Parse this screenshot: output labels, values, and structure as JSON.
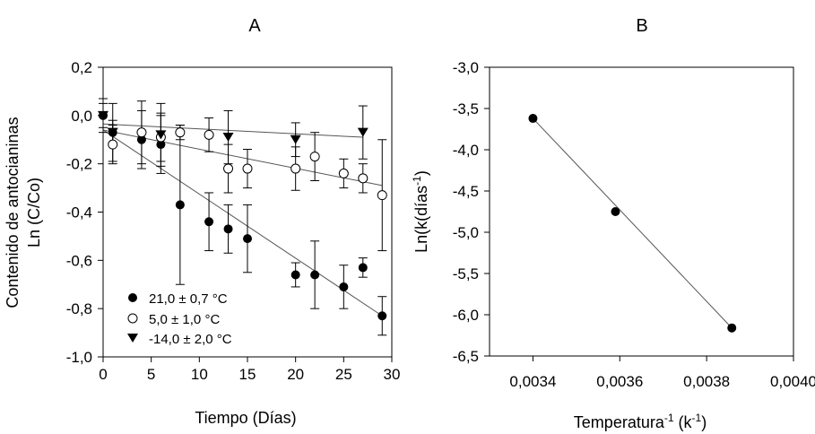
{
  "chart_data": [
    {
      "panel": "A",
      "type": "scatter",
      "title": "A",
      "xlabel": "Tiempo (Días)",
      "ylabel_line1": "Contenido de antocianinas",
      "ylabel_line2": "Ln (C/Co)",
      "xlim": [
        0,
        30
      ],
      "ylim": [
        -1.0,
        0.2
      ],
      "xticks": [
        0,
        5,
        10,
        15,
        20,
        25,
        30
      ],
      "xtick_labels": [
        "0",
        "5",
        "10",
        "15",
        "20",
        "25",
        "30"
      ],
      "yticks": [
        0.2,
        0.0,
        -0.2,
        -0.4,
        -0.6,
        -0.8,
        -1.0
      ],
      "ytick_labels": [
        "0,2",
        "0,0",
        "-0,2",
        "-0,4",
        "-0,6",
        "-0,8",
        "-1,0"
      ],
      "grid": false,
      "legend_position": "bottom-left",
      "series": [
        {
          "name": "21,0 ± 0,7 °C",
          "marker": "circle-filled",
          "points": [
            {
              "x": 0,
              "y": 0.0,
              "err": 0.05
            },
            {
              "x": 1,
              "y": -0.07,
              "err": 0.12
            },
            {
              "x": 4,
              "y": -0.1,
              "err": 0.12
            },
            {
              "x": 6,
              "y": -0.12,
              "err": 0.12
            },
            {
              "x": 8,
              "y": -0.37,
              "err": 0.33
            },
            {
              "x": 11,
              "y": -0.44,
              "err": 0.12
            },
            {
              "x": 13,
              "y": -0.47,
              "err": 0.1
            },
            {
              "x": 15,
              "y": -0.51,
              "err": 0.14
            },
            {
              "x": 20,
              "y": -0.66,
              "err": 0.05
            },
            {
              "x": 22,
              "y": -0.66,
              "err": 0.14
            },
            {
              "x": 25,
              "y": -0.71,
              "err": 0.09
            },
            {
              "x": 27,
              "y": -0.63,
              "err": 0.04
            },
            {
              "x": 29,
              "y": -0.83,
              "err": 0.08
            }
          ],
          "fit": {
            "x": [
              0,
              29
            ],
            "y": [
              -0.06,
              -0.83
            ]
          }
        },
        {
          "name": "5,0 ± 1,0 °C",
          "marker": "circle-open",
          "points": [
            {
              "x": 1,
              "y": -0.12,
              "err": 0.08
            },
            {
              "x": 4,
              "y": -0.07,
              "err": 0.13
            },
            {
              "x": 6,
              "y": -0.09,
              "err": 0.1
            },
            {
              "x": 8,
              "y": -0.07,
              "err": 0.03
            },
            {
              "x": 11,
              "y": -0.08,
              "err": 0.07
            },
            {
              "x": 13,
              "y": -0.22,
              "err": 0.1
            },
            {
              "x": 15,
              "y": -0.22,
              "err": 0.08
            },
            {
              "x": 20,
              "y": -0.22,
              "err": 0.09
            },
            {
              "x": 22,
              "y": -0.17,
              "err": 0.1
            },
            {
              "x": 25,
              "y": -0.24,
              "err": 0.06
            },
            {
              "x": 27,
              "y": -0.26,
              "err": 0.06
            },
            {
              "x": 29,
              "y": -0.33,
              "err": 0.23
            }
          ],
          "fit": {
            "x": [
              0,
              29
            ],
            "y": [
              -0.06,
              -0.29
            ]
          }
        },
        {
          "name": "-14,0 ± 2,0 °C",
          "marker": "triangle-down-filled",
          "points": [
            {
              "x": 0,
              "y": 0.0,
              "err": 0.07
            },
            {
              "x": 1,
              "y": -0.07,
              "err": 0.05
            },
            {
              "x": 6,
              "y": -0.08,
              "err": 0.13
            },
            {
              "x": 13,
              "y": -0.09,
              "err": 0.11
            },
            {
              "x": 20,
              "y": -0.1,
              "err": 0.07
            },
            {
              "x": 27,
              "y": -0.07,
              "err": 0.11
            }
          ],
          "fit": {
            "x": [
              0,
              27
            ],
            "y": [
              -0.035,
              -0.09
            ]
          }
        }
      ]
    },
    {
      "panel": "B",
      "type": "scatter",
      "title": "B",
      "xlabel_main": "Temperatura",
      "xlabel_sup": "-1",
      "xlabel_unit": " (k",
      "xlabel_unit_sup": "-1",
      "xlabel_close": ")",
      "ylabel_main": "Ln(k(días",
      "ylabel_sup": "-1",
      "ylabel_close": ")",
      "xlim": [
        0.0033,
        0.004
      ],
      "ylim": [
        -6.5,
        -3.0
      ],
      "xticks": [
        0.0034,
        0.0036,
        0.0038,
        0.004
      ],
      "xtick_labels": [
        "0,0034",
        "0,0036",
        "0,0038",
        "0,0040"
      ],
      "yticks": [
        -3.0,
        -3.5,
        -4.0,
        -4.5,
        -5.0,
        -5.5,
        -6.0,
        -6.5
      ],
      "ytick_labels": [
        "-3,0",
        "-3,5",
        "-4,0",
        "-4,5",
        "-5,0",
        "-5,5",
        "-6,0",
        "-6,5"
      ],
      "grid": false,
      "series": [
        {
          "marker": "circle-filled",
          "points": [
            {
              "x": 0.0034,
              "y": -3.62
            },
            {
              "x": 0.00359,
              "y": -4.75
            },
            {
              "x": 0.003858,
              "y": -6.16
            }
          ],
          "fit": {
            "x": [
              0.0034,
              0.003858
            ],
            "y": [
              -3.62,
              -6.16
            ]
          }
        }
      ]
    }
  ]
}
